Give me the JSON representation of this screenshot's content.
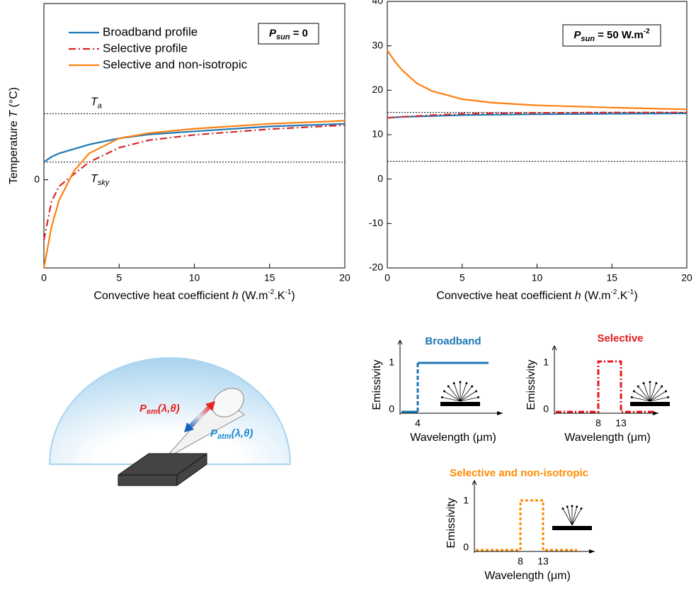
{
  "chart_data": [
    {
      "type": "line",
      "ylabel": [
        "Temperature ",
        "T",
        " (°C)"
      ],
      "xlabel": [
        "Convective heat coefficient ",
        "h",
        " (W.m",
        "-2",
        ".K",
        "-1",
        ")"
      ],
      "x": [
        0,
        0.5,
        1,
        2,
        3,
        5,
        7,
        10,
        15,
        20
      ],
      "xlim": [
        0,
        20
      ],
      "xticks": [
        0,
        5,
        10,
        15,
        20
      ],
      "ylim": [
        -20,
        40
      ],
      "yticks": [
        0
      ],
      "legend": "upper left",
      "annotation": [
        "P",
        "sun",
        " = 0"
      ],
      "ref_lines": [
        {
          "label": [
            "T",
            "a"
          ],
          "value": 15
        },
        {
          "label": [
            "T",
            "sky"
          ],
          "value": 4
        }
      ],
      "series": [
        {
          "name": "Broadband profile",
          "color": "#1f77b4",
          "dash": "solid",
          "values": [
            4,
            5.2,
            6,
            7,
            8,
            9.4,
            10.3,
            11,
            12.1,
            12.7
          ]
        },
        {
          "name": "Selective profile",
          "color": "#d62728",
          "dash": "dashdot",
          "values": [
            -13.7,
            -5,
            -1.5,
            1.3,
            4,
            7.3,
            9,
            10.2,
            11.5,
            12.4
          ]
        },
        {
          "name": "Selective and non-isotropic",
          "color": "#ff7f0e",
          "dash": "solid",
          "values": [
            -20,
            -10.8,
            -4.7,
            2,
            6,
            9.4,
            10.6,
            11.6,
            12.7,
            13.4
          ]
        }
      ]
    },
    {
      "type": "line",
      "xlabel": [
        "Convective heat coefficient ",
        "h",
        " (W.m",
        "-2",
        ".K",
        "-1",
        ")"
      ],
      "x": [
        0,
        0.5,
        1,
        2,
        3,
        5,
        7,
        10,
        15,
        20
      ],
      "xlim": [
        0,
        20
      ],
      "xticks": [
        0,
        5,
        10,
        15,
        20
      ],
      "ylim": [
        -20,
        40
      ],
      "yticks": [
        -20,
        -10,
        0,
        10,
        20,
        30,
        40
      ],
      "annotation": [
        "P",
        "sun",
        " = 50 W.m",
        "-2"
      ],
      "ref_lines": [
        {
          "value": 15
        },
        {
          "value": 4
        }
      ],
      "series": [
        {
          "color": "#1f77b4",
          "dash": "solid",
          "values": [
            13.8,
            13.9,
            14,
            14.1,
            14.2,
            14.4,
            14.5,
            14.6,
            14.7,
            14.8
          ]
        },
        {
          "color": "#d62728",
          "dash": "dashdot",
          "values": [
            13.8,
            13.9,
            14,
            14.2,
            14.4,
            14.7,
            14.8,
            14.9,
            15,
            15
          ]
        },
        {
          "color": "#ff7f0e",
          "dash": "solid",
          "values": [
            29,
            26.5,
            24.5,
            21.5,
            19.8,
            18,
            17.2,
            16.6,
            16.1,
            15.7
          ]
        }
      ]
    }
  ],
  "diagram": {
    "p_em": [
      "P",
      "em",
      "(λ,θ)"
    ],
    "p_atm": [
      "P",
      "atm",
      "(λ,θ)"
    ],
    "emissivity_label": "Emissivity",
    "wavelength_label": "Wavelength (μm)",
    "one": "1",
    "zero": "0",
    "panels": [
      {
        "title": "Broadband",
        "ticks": [
          "4"
        ]
      },
      {
        "title": "Selective",
        "ticks": [
          "8",
          "13"
        ]
      },
      {
        "title": "Selective and non-isotropic",
        "ticks": [
          "8",
          "13"
        ]
      }
    ]
  }
}
